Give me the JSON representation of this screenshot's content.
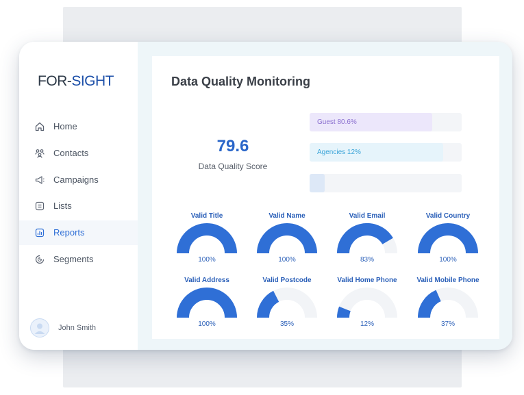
{
  "brand": {
    "part1": "FOR-",
    "part2": "SIGHT"
  },
  "nav": [
    {
      "label": "Home",
      "icon": "home-icon"
    },
    {
      "label": "Contacts",
      "icon": "contacts-icon"
    },
    {
      "label": "Campaigns",
      "icon": "megaphone-icon"
    },
    {
      "label": "Lists",
      "icon": "list-icon"
    },
    {
      "label": "Reports",
      "icon": "report-icon",
      "active": true
    },
    {
      "label": "Segments",
      "icon": "segments-icon"
    }
  ],
  "user": {
    "name": "John Smith"
  },
  "dashboard": {
    "title": "Data Quality Monitoring",
    "score": {
      "value": "79.6",
      "label": "Data Quality Score"
    },
    "bars": [
      {
        "label": "Guest 80.6%",
        "value": 0.806,
        "fill": "#ece7fb",
        "text_color": "#8a6fcf"
      },
      {
        "label": "Agencies 12%",
        "value": 0.12,
        "display_fill": 0.88,
        "fill": "#e6f4fb",
        "text_color": "#3aa4d8"
      },
      {
        "label": "",
        "value": 0.1,
        "fill": "#dde8f7",
        "text_color": "#3a6fc9"
      }
    ],
    "gauges": [
      {
        "title": "Valid Title",
        "value": 100,
        "label": "100%"
      },
      {
        "title": "Valid Name",
        "value": 100,
        "label": "100%"
      },
      {
        "title": "Valid Email",
        "value": 83,
        "label": "83%"
      },
      {
        "title": "Valid Country",
        "value": 100,
        "label": "100%"
      },
      {
        "title": "Valid Address",
        "value": 100,
        "label": "100%"
      },
      {
        "title": "Valid Postcode",
        "value": 35,
        "label": "35%"
      },
      {
        "title": "Valid Home Phone",
        "value": 12,
        "label": "12%"
      },
      {
        "title": "Valid Mobile Phone",
        "value": 37,
        "label": "37%"
      }
    ]
  },
  "colors": {
    "accent": "#2f6fd6",
    "gauge_fill": "#2f6fd6",
    "gauge_track": "#f2f4f7"
  }
}
